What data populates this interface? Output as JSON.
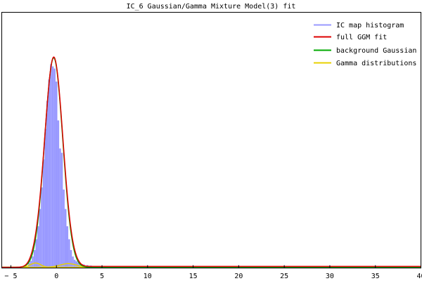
{
  "chart_data": {
    "type": "area",
    "title": "IC_6 Gaussian/Gamma Mixture Model(3) fit",
    "xlabel": "",
    "ylabel": "",
    "xlim": [
      -6,
      40
    ],
    "ylim": [
      0,
      1.0
    ],
    "x_ticks": [
      -5,
      0,
      5,
      10,
      15,
      20,
      25,
      30,
      35,
      40
    ],
    "x_tick_labels": [
      "− 5",
      "0",
      "5",
      "10",
      "15",
      "20",
      "25",
      "30",
      "35",
      "40"
    ],
    "grid": false,
    "legend_position": "top-right",
    "legend": [
      {
        "label": "IC map histogram",
        "color": "#9999ff"
      },
      {
        "label": "full GGM fit",
        "color": "#dd0000"
      },
      {
        "label": "background Gaussian",
        "color": "#00aa00"
      },
      {
        "label": "Gamma distributions",
        "color": "#e8d000"
      }
    ],
    "components": {
      "background_gaussian": {
        "mean": -0.3,
        "sd": 1.0,
        "peak": 0.97
      },
      "gamma_left": {
        "center": -2.3,
        "sd": 0.55,
        "peak": 0.02
      },
      "gamma_right": {
        "center": 1.3,
        "sd": 0.9,
        "peak": 0.017
      },
      "tail_level": 0.004
    },
    "histogram": {
      "bin_width": 0.2,
      "x": [
        -3.0,
        -2.8,
        -2.6,
        -2.4,
        -2.2,
        -2.0,
        -1.8,
        -1.6,
        -1.4,
        -1.2,
        -1.0,
        -0.8,
        -0.6,
        -0.4,
        -0.2,
        0.0,
        0.2,
        0.4,
        0.6,
        0.8,
        1.0,
        1.2,
        1.4,
        1.6,
        1.8,
        2.0,
        2.2,
        2.4,
        2.6,
        2.8,
        3.0,
        3.4,
        3.8,
        4.2
      ],
      "values": [
        0.02,
        0.03,
        0.05,
        0.08,
        0.13,
        0.19,
        0.27,
        0.37,
        0.5,
        0.64,
        0.77,
        0.87,
        0.94,
        0.93,
        0.92,
        0.86,
        0.68,
        0.55,
        0.53,
        0.36,
        0.27,
        0.19,
        0.13,
        0.08,
        0.05,
        0.035,
        0.028,
        0.022,
        0.018,
        0.015,
        0.013,
        0.01,
        0.008,
        0.005
      ]
    }
  }
}
